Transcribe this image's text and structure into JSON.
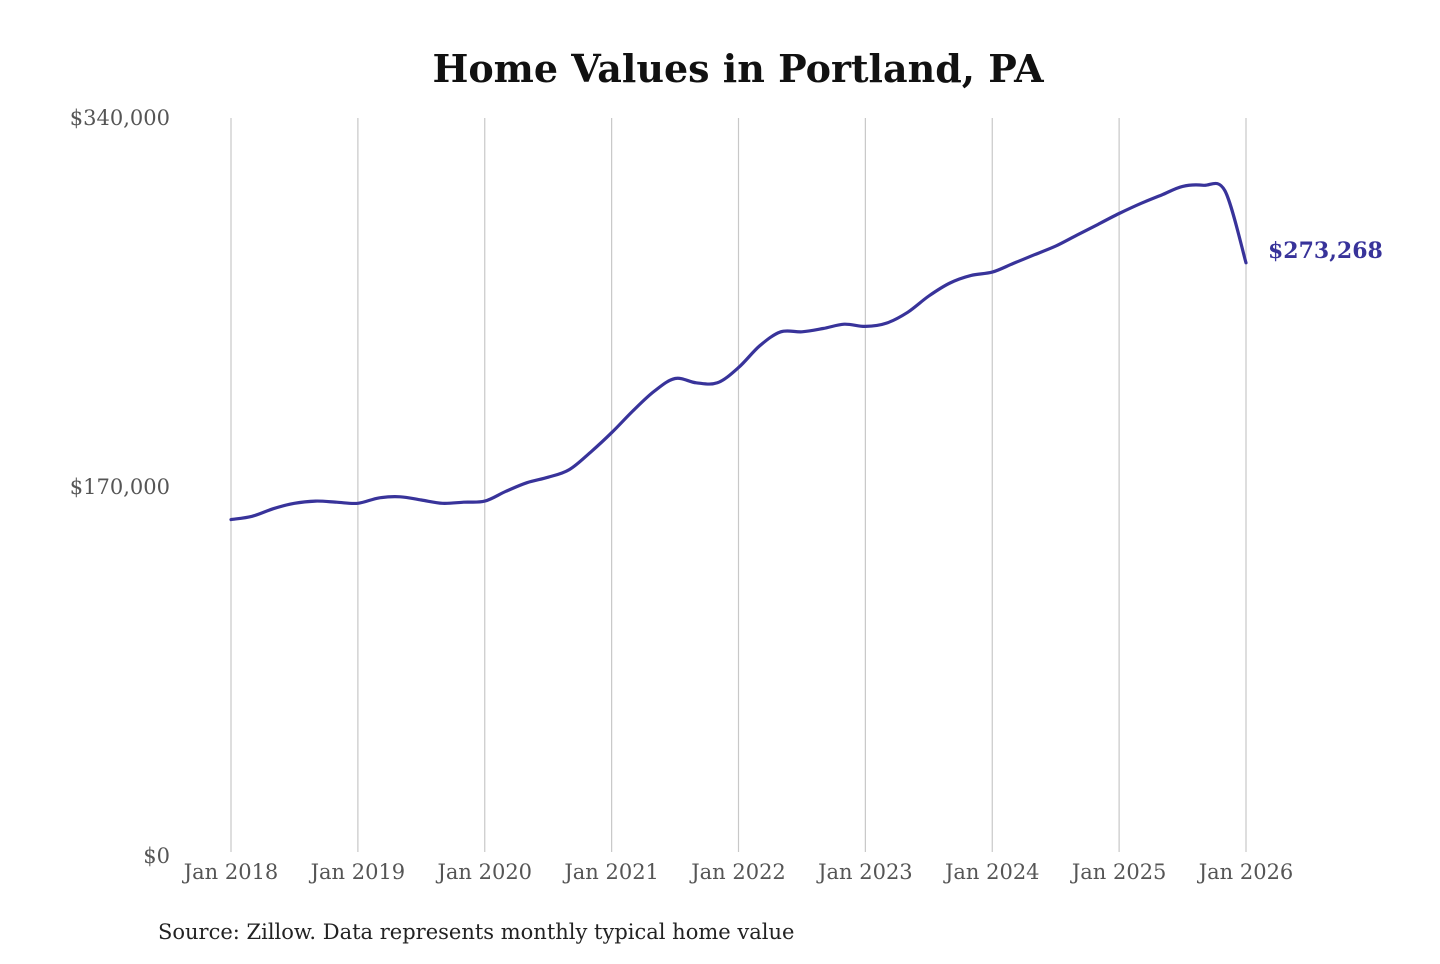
{
  "chart_data": {
    "type": "line",
    "title": "Home Values in Portland, PA",
    "source": "Source: Zillow. Data represents monthly typical home value",
    "ylim": [
      0,
      340000
    ],
    "y_ticks": [
      "$0",
      "$170,000",
      "$340,000"
    ],
    "y_tick_values": [
      0,
      170000,
      340000
    ],
    "x_ticks": [
      "Jan 2018",
      "Jan 2019",
      "Jan 2020",
      "Jan 2021",
      "Jan 2022",
      "Jan 2023",
      "Jan 2024",
      "Jan 2025",
      "Jan 2026"
    ],
    "x_tick_values": [
      "2018-01",
      "2019-01",
      "2020-01",
      "2021-01",
      "2022-01",
      "2023-01",
      "2024-01",
      "2025-01",
      "2026-01"
    ],
    "grid": "vertical",
    "line_color": "#38339a",
    "end_label": "$273,268",
    "series": [
      {
        "x": [
          "2018-01",
          "2018-03",
          "2018-05",
          "2018-07",
          "2018-09",
          "2018-11",
          "2019-01",
          "2019-03",
          "2019-05",
          "2019-07",
          "2019-09",
          "2019-11",
          "2020-01",
          "2020-03",
          "2020-05",
          "2020-07",
          "2020-09",
          "2020-11",
          "2021-01",
          "2021-03",
          "2021-05",
          "2021-07",
          "2021-09",
          "2021-11",
          "2022-01",
          "2022-03",
          "2022-05",
          "2022-07",
          "2022-09",
          "2022-11",
          "2023-01",
          "2023-03",
          "2023-05",
          "2023-07",
          "2023-09",
          "2023-11",
          "2024-01",
          "2024-03",
          "2024-05",
          "2024-07",
          "2024-09",
          "2024-11",
          "2025-01",
          "2025-03",
          "2025-05",
          "2025-07",
          "2025-09",
          "2025-11",
          "2026-01"
        ],
        "values": [
          155000,
          156500,
          160000,
          162500,
          163500,
          163000,
          162500,
          165000,
          165500,
          164000,
          162500,
          163000,
          163500,
          168000,
          172000,
          174500,
          178000,
          186000,
          195000,
          205000,
          214000,
          220000,
          218000,
          218000,
          225000,
          235000,
          241500,
          241500,
          243000,
          245000,
          244000,
          245500,
          250500,
          258000,
          264000,
          267500,
          269000,
          273000,
          277000,
          281000,
          286000,
          291000,
          296000,
          300500,
          304500,
          308500,
          309000,
          306500,
          273268
        ]
      }
    ]
  }
}
